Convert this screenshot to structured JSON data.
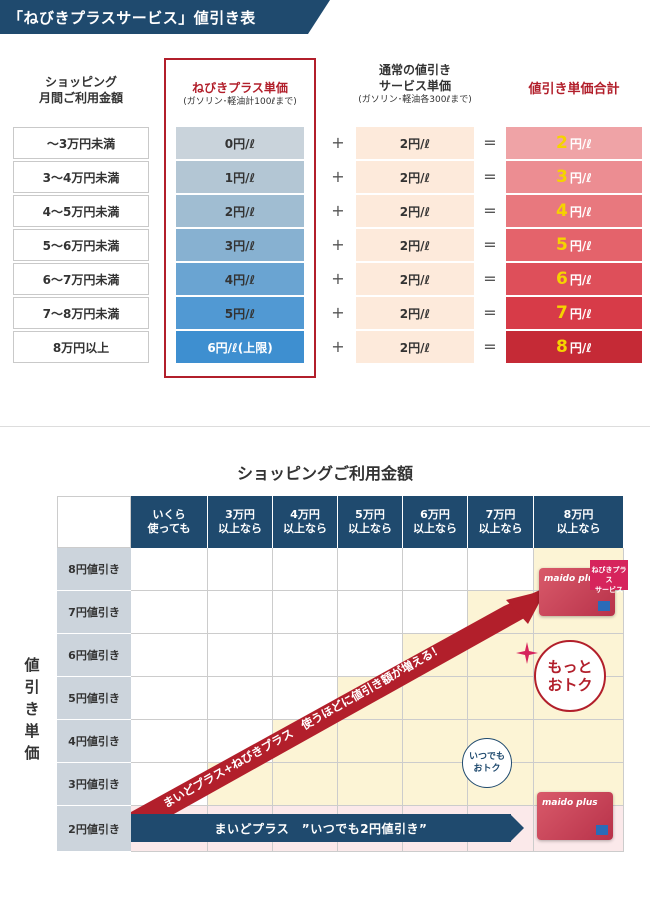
{
  "header": {
    "title": "「ねびきプラスサービス」値引き表"
  },
  "table1": {
    "col_shopping": "ショッピング\n月間ご利用金額",
    "col_nebiki_title": "ねびきプラス単価",
    "col_nebiki_sub": "(ガソリン･軽油計100ℓまで)",
    "col_regular_title": "通常の値引き\nサービス単価",
    "col_regular_sub": "(ガソリン･軽油各300ℓまで)",
    "col_total": "値引き単価合計",
    "plus": "+",
    "equals": "=",
    "rows": [
      {
        "range": "〜3万円未満",
        "nebiki": "0円/ℓ",
        "regular": "2円/ℓ",
        "total_num": "2",
        "total_unit": "円/ℓ"
      },
      {
        "range": "3〜4万円未満",
        "nebiki": "1円/ℓ",
        "regular": "2円/ℓ",
        "total_num": "3",
        "total_unit": "円/ℓ"
      },
      {
        "range": "4〜5万円未満",
        "nebiki": "2円/ℓ",
        "regular": "2円/ℓ",
        "total_num": "4",
        "total_unit": "円/ℓ"
      },
      {
        "range": "5〜6万円未満",
        "nebiki": "3円/ℓ",
        "regular": "2円/ℓ",
        "total_num": "5",
        "total_unit": "円/ℓ"
      },
      {
        "range": "6〜7万円未満",
        "nebiki": "4円/ℓ",
        "regular": "2円/ℓ",
        "total_num": "6",
        "total_unit": "円/ℓ"
      },
      {
        "range": "7〜8万円未満",
        "nebiki": "5円/ℓ",
        "regular": "2円/ℓ",
        "total_num": "7",
        "total_unit": "円/ℓ"
      },
      {
        "range": "8万円以上",
        "nebiki": "6円/ℓ(上限)",
        "regular": "2円/ℓ",
        "total_num": "8",
        "total_unit": "円/ℓ"
      }
    ],
    "colors": {
      "nebiki": [
        "#c9d3db",
        "#b3c6d4",
        "#a0bdd2",
        "#87b1d1",
        "#6aa4d2",
        "#5199d3",
        "#3e8fd0"
      ],
      "total": [
        "#efa3a6",
        "#ec8d92",
        "#e8787e",
        "#e4636b",
        "#de4f5a",
        "#d73b48",
        "#c52a36"
      ],
      "accent_red": "#b21f2b",
      "navy": "#1f4a6e"
    }
  },
  "grid": {
    "title": "ショッピングご利用金額",
    "columns": [
      "いくら\n使っても",
      "3万円\n以上なら",
      "4万円\n以上なら",
      "5万円\n以上なら",
      "6万円\n以上なら",
      "7万円\n以上なら",
      "8万円\n以上なら"
    ],
    "rows": [
      "8円値引き",
      "7円値引き",
      "6円値引き",
      "5円値引き",
      "4円値引き",
      "3円値引き",
      "2円値引き"
    ],
    "vertical_label": "値引き単価",
    "red_arrow_text": "まいどプラス+ねびきプラス　使うほどに値引き額が増える！",
    "blue_bar_text": "まいどプラス　”いつでも2円値引き”",
    "bubble_red": "もっと\nおトク",
    "bubble_blue": "いつでも\nおトク",
    "card_logo": "maido plus",
    "badge": "ねびきプラス\nサービス"
  }
}
